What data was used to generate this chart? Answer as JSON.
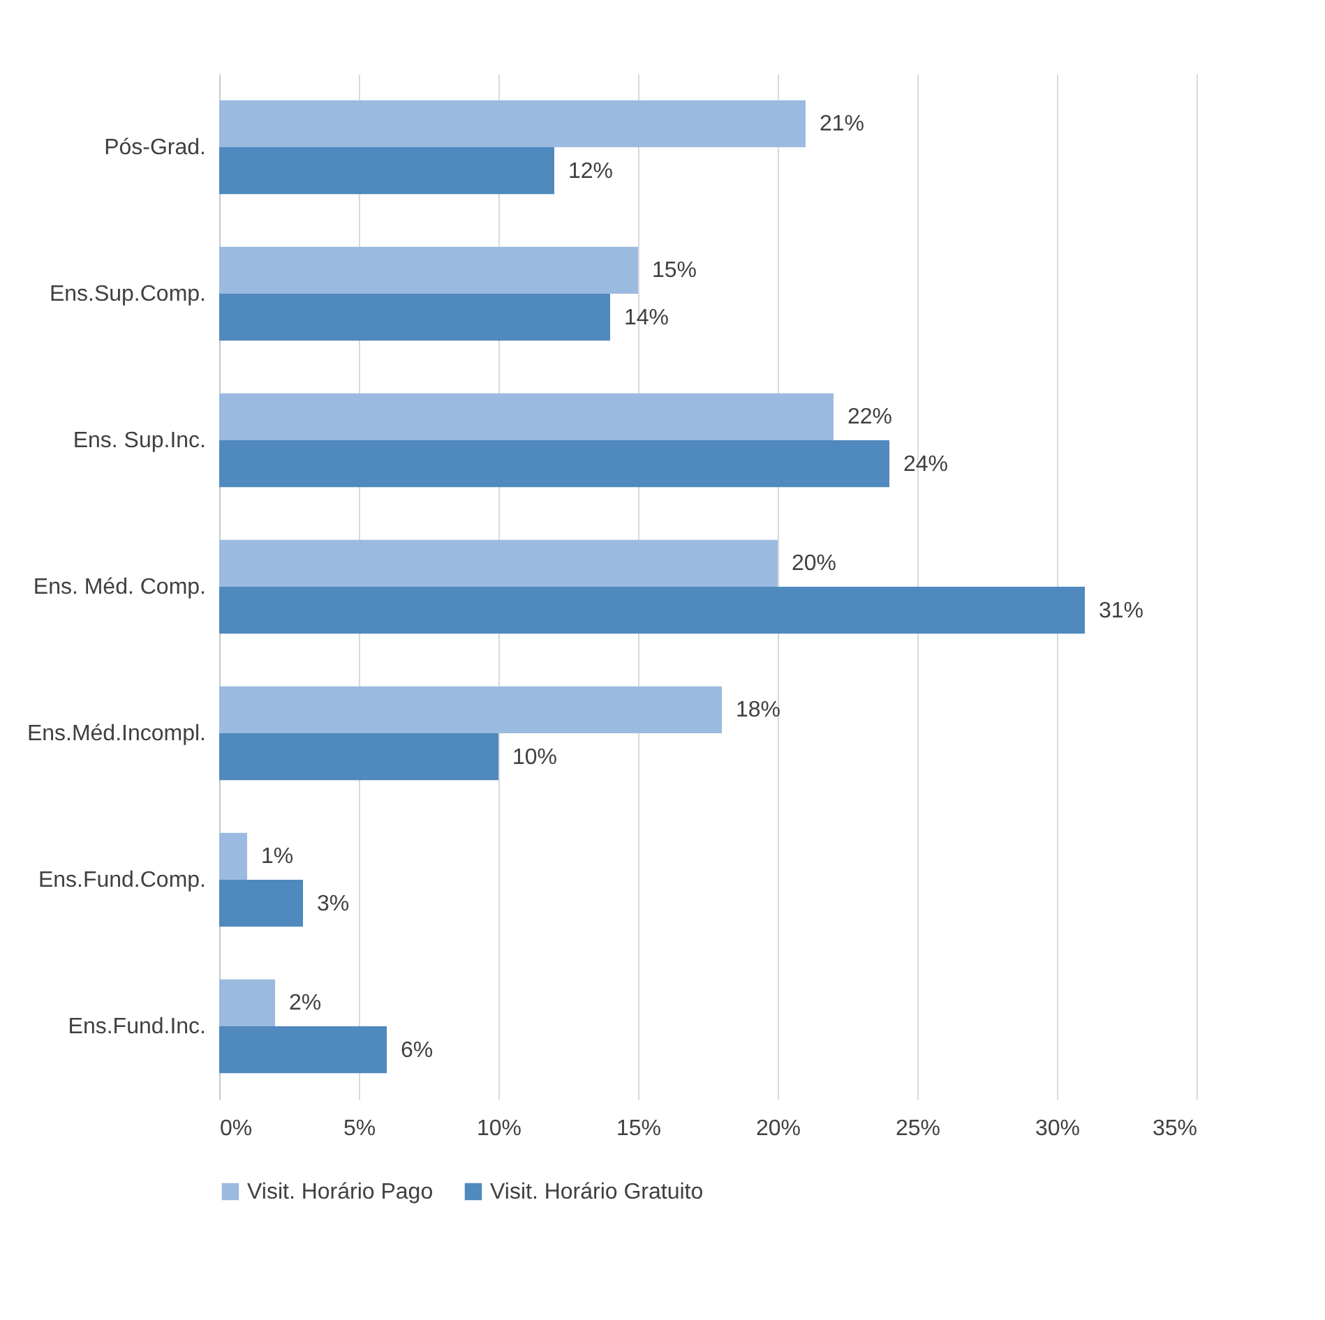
{
  "chart_data": {
    "type": "bar",
    "orientation": "horizontal",
    "categories": [
      "Pós-Grad.",
      "Ens.Sup.Comp.",
      "Ens. Sup.Inc.",
      "Ens. Méd. Comp.",
      "Ens.Méd.Incompl.",
      "Ens.Fund.Comp.",
      "Ens.Fund.Inc."
    ],
    "series": [
      {
        "name": "Visit. Horário Pago",
        "color": "#9bbae0",
        "values": [
          21,
          15,
          22,
          20,
          18,
          1,
          2
        ],
        "value_labels": [
          "21%",
          "15%",
          "22%",
          "20%",
          "18%",
          "1%",
          "2%"
        ]
      },
      {
        "name": "Visit. Horário Gratuito",
        "color": "#4f89bd",
        "values": [
          12,
          14,
          24,
          31,
          10,
          3,
          6
        ],
        "value_labels": [
          "12%",
          "14%",
          "24%",
          "31%",
          "10%",
          "3%",
          "6%"
        ]
      }
    ],
    "xlim": [
      0,
      35
    ],
    "xticks": [
      {
        "value": 0,
        "label": "0%"
      },
      {
        "value": 5,
        "label": "5%"
      },
      {
        "value": 10,
        "label": "10%"
      },
      {
        "value": 15,
        "label": "15%"
      },
      {
        "value": 20,
        "label": "20%"
      },
      {
        "value": 25,
        "label": "25%"
      },
      {
        "value": 30,
        "label": "30%"
      },
      {
        "value": 35,
        "label": "35%"
      }
    ],
    "grid": "x",
    "legend": "bottom"
  }
}
